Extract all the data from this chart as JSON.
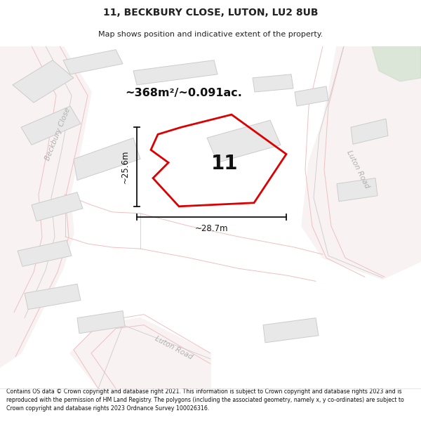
{
  "title_line1": "11, BECKBURY CLOSE, LUTON, LU2 8UB",
  "title_line2": "Map shows position and indicative extent of the property.",
  "area_label": "~368m²/~0.091ac.",
  "property_number": "11",
  "dim_height": "~25.6m",
  "dim_width": "~28.7m",
  "footer_text": "Contains OS data © Crown copyright and database right 2021. This information is subject to Crown copyright and database rights 2023 and is reproduced with the permission of HM Land Registry. The polygons (including the associated geometry, namely x, y co-ordinates) are subject to Crown copyright and database rights 2023 Ordnance Survey 100026316.",
  "bg_color": "#ffffff",
  "map_bg": "#fafafa",
  "plot_color": "#dd0000",
  "building_fill": "#e8e8e8",
  "building_edge": "#cccccc",
  "road_fill": "#f9f0f0",
  "road_line": "#f0c0c0",
  "road_label_color": "#b0b0b0",
  "dim_line_color": "#111111",
  "text_color": "#222222",
  "footer_color": "#111111",
  "green_color": "#c8ddc8"
}
